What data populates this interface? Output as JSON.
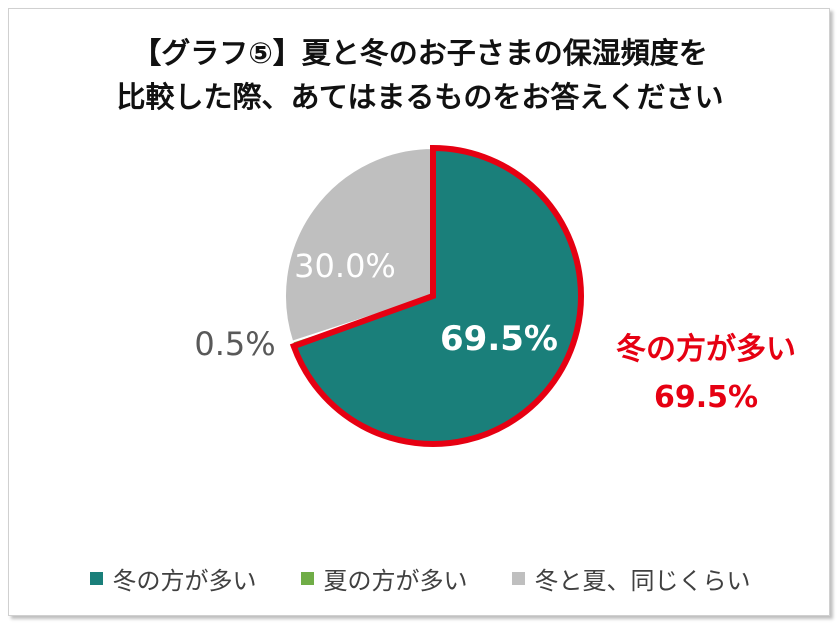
{
  "chart_data": {
    "type": "pie",
    "title_lines": [
      "【グラフ⑤】夏と冬のお子さまの保湿頻度を",
      "比較した際、あてはまるものをお答えください"
    ],
    "categories": [
      "冬の方が多い",
      "夏の方が多い",
      "冬と夏、同じくらい"
    ],
    "values": [
      69.5,
      0.5,
      30.0
    ],
    "value_labels": [
      "69.5%",
      "0.5%",
      "30.0%"
    ],
    "colors": [
      "#1a7f7a",
      "#70ad47",
      "#bfbfbf"
    ],
    "highlight": {
      "category": "冬の方が多い",
      "name_label": "冬の方が多い",
      "value_label": "69.5%",
      "outline_color": "#e60012"
    },
    "legend_position": "bottom"
  }
}
